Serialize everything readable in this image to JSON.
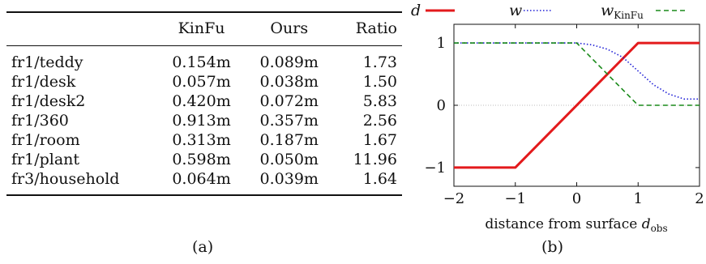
{
  "table": {
    "headers": [
      "",
      "KinFu",
      "Ours",
      "Ratio"
    ],
    "rows": [
      [
        "fr1/teddy",
        "0.154m",
        "0.089m",
        "1.73"
      ],
      [
        "fr1/desk",
        "0.057m",
        "0.038m",
        "1.50"
      ],
      [
        "fr1/desk2",
        "0.420m",
        "0.072m",
        "5.83"
      ],
      [
        "fr1/360",
        "0.913m",
        "0.357m",
        "2.56"
      ],
      [
        "fr1/room",
        "0.313m",
        "0.187m",
        "1.67"
      ],
      [
        "fr1/plant",
        "0.598m",
        "0.050m",
        "11.96"
      ],
      [
        "fr3/household",
        "0.064m",
        "0.039m",
        "1.64"
      ]
    ]
  },
  "captions": {
    "a": "(a)",
    "b": "(b)"
  },
  "chart_data": {
    "type": "line",
    "xlabel": "distance from surface d_obs",
    "xlim": [
      -2,
      2
    ],
    "ylim": [
      -1.3,
      1.3
    ],
    "xticks": [
      -2,
      -1,
      0,
      1,
      2
    ],
    "yticks": [
      -1,
      0,
      1
    ],
    "xtick_labels": [
      "−2",
      "−1",
      "0",
      "1",
      "2"
    ],
    "ytick_labels": [
      "−1",
      "0",
      "1"
    ],
    "legend_position": "top",
    "series": [
      {
        "name": "d",
        "color": "#e31a1c",
        "style": "solid",
        "x": [
          -2,
          -1,
          1,
          2
        ],
        "y": [
          -1,
          -1,
          1,
          1
        ]
      },
      {
        "name": "w",
        "color": "#1f1fd6",
        "style": "dotted",
        "x": [
          -2,
          0,
          0.25,
          0.5,
          0.75,
          1,
          1.25,
          1.5,
          1.75,
          2
        ],
        "y": [
          1,
          1,
          0.97,
          0.9,
          0.77,
          0.55,
          0.33,
          0.18,
          0.1,
          0.1
        ]
      },
      {
        "name": "w_KinFu",
        "color": "#1a8a1a",
        "style": "dashed",
        "x": [
          -2,
          0,
          1,
          2
        ],
        "y": [
          1,
          1,
          0,
          0
        ]
      }
    ]
  }
}
